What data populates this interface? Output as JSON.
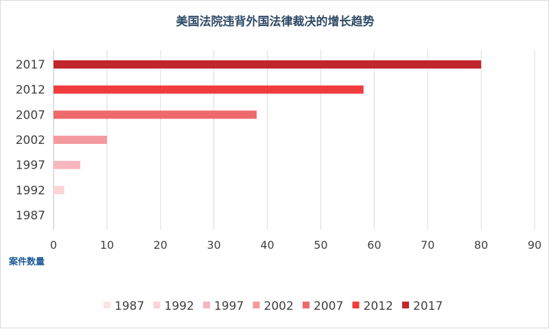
{
  "chart_data": {
    "type": "bar",
    "orientation": "horizontal",
    "title": "美国法院违背外国法律裁决的增长趋势",
    "xlabel": "案件数量",
    "ylabel": "",
    "categories": [
      "2017",
      "2012",
      "2007",
      "2002",
      "1997",
      "1992",
      "1987"
    ],
    "values": [
      80,
      58,
      38,
      10,
      5,
      2,
      0
    ],
    "xlim": [
      0,
      90
    ],
    "xticks": [
      "0",
      "10",
      "20",
      "30",
      "40",
      "50",
      "60",
      "70",
      "80",
      "90"
    ],
    "grid": "vertical",
    "legend": {
      "placement": "bottom",
      "entries": [
        "1987",
        "1992",
        "1997",
        "2002",
        "2007",
        "2012",
        "2017"
      ]
    },
    "colors": {
      "1987": "#fbe3e3",
      "1992": "#fbd4d8",
      "1997": "#f8b6bf",
      "2002": "#f59a9f",
      "2007": "#ee6a6a",
      "2012": "#f03c3c",
      "2017": "#c0262b"
    }
  }
}
